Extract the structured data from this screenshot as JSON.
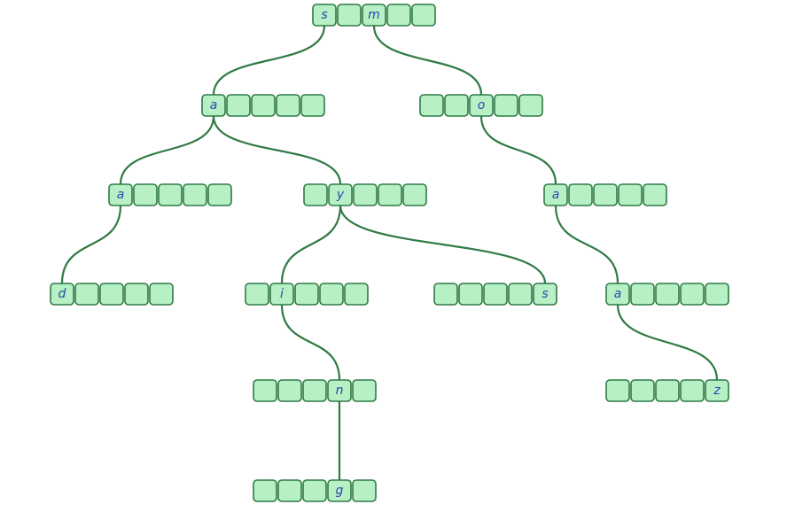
{
  "diagram": {
    "nodes": [
      {
        "id": "root",
        "cells": [
          "s",
          "",
          "m",
          "",
          ""
        ]
      },
      {
        "id": "n_a1",
        "cells": [
          "a",
          "",
          "",
          "",
          ""
        ]
      },
      {
        "id": "n_o",
        "cells": [
          "",
          "",
          "o",
          "",
          ""
        ]
      },
      {
        "id": "n_a2",
        "cells": [
          "a",
          "",
          "",
          "",
          ""
        ]
      },
      {
        "id": "n_y",
        "cells": [
          "",
          "y",
          "",
          "",
          ""
        ]
      },
      {
        "id": "n_a3",
        "cells": [
          "a",
          "",
          "",
          "",
          ""
        ]
      },
      {
        "id": "n_d",
        "cells": [
          "d",
          "",
          "",
          "",
          ""
        ]
      },
      {
        "id": "n_i",
        "cells": [
          "",
          "i",
          "",
          "",
          ""
        ]
      },
      {
        "id": "n_s",
        "cells": [
          "",
          "",
          "",
          "",
          "s"
        ]
      },
      {
        "id": "n_a4",
        "cells": [
          "a",
          "",
          "",
          "",
          ""
        ]
      },
      {
        "id": "n_n",
        "cells": [
          "",
          "",
          "",
          "n",
          ""
        ]
      },
      {
        "id": "n_z",
        "cells": [
          "",
          "",
          "",
          "",
          "z"
        ]
      },
      {
        "id": "n_g",
        "cells": [
          "",
          "",
          "",
          "g",
          ""
        ]
      }
    ],
    "edges": [
      {
        "from": "root",
        "cell": 0,
        "to": "n_a1"
      },
      {
        "from": "root",
        "cell": 2,
        "to": "n_o"
      },
      {
        "from": "n_a1",
        "cell": 0,
        "to": "n_a2"
      },
      {
        "from": "n_a1",
        "cell": 0,
        "to": "n_y"
      },
      {
        "from": "n_o",
        "cell": 2,
        "to": "n_a3"
      },
      {
        "from": "n_a2",
        "cell": 0,
        "to": "n_d"
      },
      {
        "from": "n_y",
        "cell": 1,
        "to": "n_i"
      },
      {
        "from": "n_y",
        "cell": 1,
        "to": "n_s"
      },
      {
        "from": "n_a3",
        "cell": 0,
        "to": "n_a4"
      },
      {
        "from": "n_i",
        "cell": 1,
        "to": "n_n"
      },
      {
        "from": "n_a4",
        "cell": 0,
        "to": "n_z"
      },
      {
        "from": "n_n",
        "cell": 3,
        "to": "n_g"
      }
    ]
  }
}
